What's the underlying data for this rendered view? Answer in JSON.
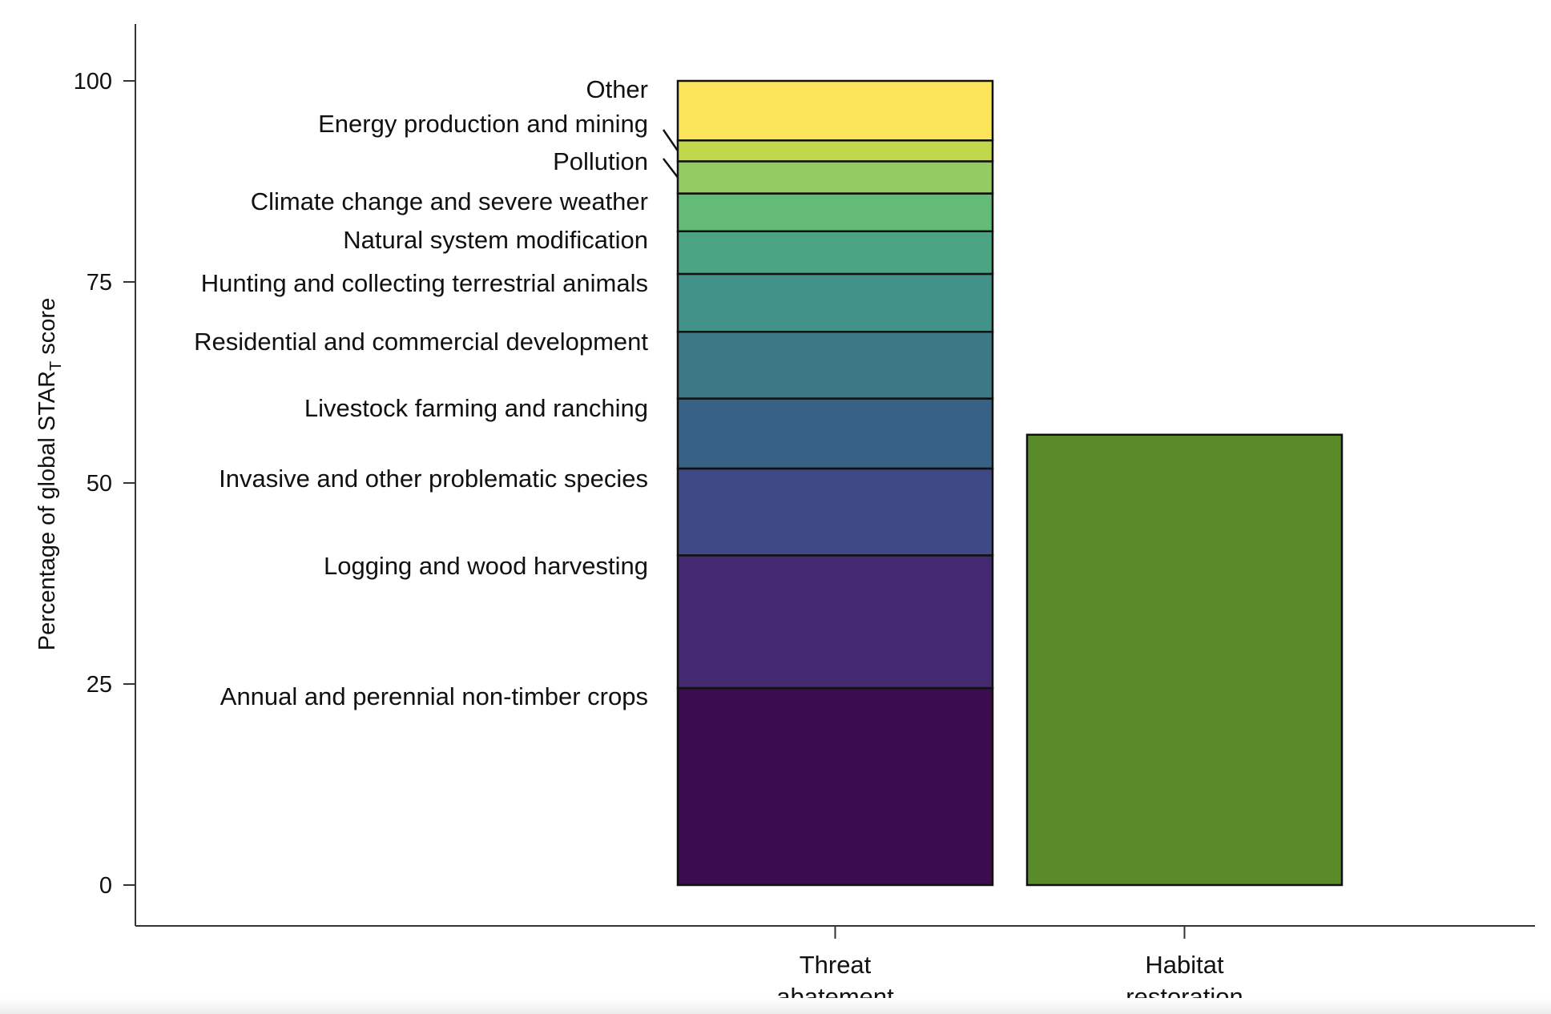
{
  "chart_data": {
    "type": "bar",
    "stacked": true,
    "ylabel": "Percentage of global STAR",
    "ylabel_subscript": "T",
    "ylabel_suffix": " score",
    "xlabel": "",
    "ylim": [
      0,
      100
    ],
    "yticks": [
      "0",
      "25",
      "50",
      "75",
      "100"
    ],
    "grid": false,
    "legend": "labels beside bar",
    "categories": [
      {
        "line1": "Threat",
        "line2": "abatement"
      },
      {
        "line1": "Habitat",
        "line2": "restoration"
      }
    ],
    "threat_abatement": [
      {
        "name": "Annual and perennial non-timber crops",
        "value": 24.5,
        "color": "#3b0c4e"
      },
      {
        "name": "Logging and wood harvesting",
        "value": 16.5,
        "color": "#432a70"
      },
      {
        "name": "Invasive and other problematic species",
        "value": 10.8,
        "color": "#3e4985"
      },
      {
        "name": "Livestock farming and ranching",
        "value": 8.7,
        "color": "#386186"
      },
      {
        "name": "Residential and commercial development",
        "value": 8.3,
        "color": "#3c7886"
      },
      {
        "name": "Hunting and collecting terrestrial animals",
        "value": 7.2,
        "color": "#429289"
      },
      {
        "name": "Natural system modification",
        "value": 5.3,
        "color": "#4ca582"
      },
      {
        "name": "Climate change and severe weather",
        "value": 4.7,
        "color": "#64ba77"
      },
      {
        "name": "Pollution",
        "value": 4.0,
        "color": "#94cb63"
      },
      {
        "name": "Energy production and mining",
        "value": 2.6,
        "color": "#c1d84a"
      },
      {
        "name": "Other",
        "value": 7.4,
        "color": "#fce55b"
      }
    ],
    "habitat_restoration": {
      "value": 56.0,
      "color": "#5a8b29"
    }
  }
}
